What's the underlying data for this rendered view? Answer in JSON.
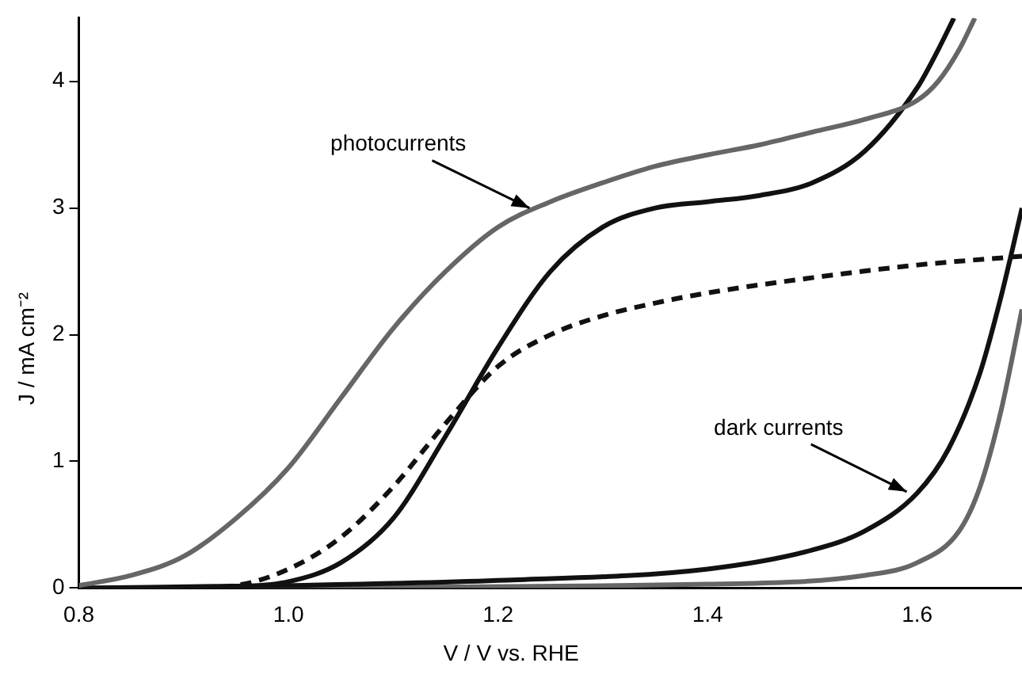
{
  "chart_data": {
    "type": "line",
    "xlabel": "V / V vs. RHE",
    "ylabel": "J / mA cm⁻²",
    "xlim": [
      0.8,
      1.7
    ],
    "ylim": [
      0,
      4.5
    ],
    "xticks": [
      {
        "value": 0.8,
        "label": "0.8"
      },
      {
        "value": 1.0,
        "label": "1.0"
      },
      {
        "value": 1.2,
        "label": "1.2"
      },
      {
        "value": 1.4,
        "label": "1.4"
      },
      {
        "value": 1.6,
        "label": "1.6"
      }
    ],
    "yticks": [
      0,
      1,
      2,
      3,
      4
    ],
    "grid": false,
    "legend": false,
    "marker": "none",
    "series": [
      {
        "color": "#666666",
        "line_style": "solid",
        "x": [
          0.8,
          0.85,
          0.9,
          0.95,
          1.0,
          1.05,
          1.1,
          1.15,
          1.2,
          1.25,
          1.3,
          1.35,
          1.4,
          1.45,
          1.5,
          1.55,
          1.6,
          1.62,
          1.64,
          1.655
        ],
        "values": [
          0.02,
          0.1,
          0.25,
          0.55,
          0.95,
          1.5,
          2.05,
          2.5,
          2.85,
          3.05,
          3.2,
          3.33,
          3.42,
          3.5,
          3.6,
          3.7,
          3.85,
          4.0,
          4.25,
          4.5
        ]
      },
      {
        "color": "#111111",
        "line_style": "solid",
        "x": [
          0.9,
          0.95,
          1.0,
          1.05,
          1.1,
          1.15,
          1.2,
          1.25,
          1.3,
          1.35,
          1.4,
          1.45,
          1.5,
          1.55,
          1.6,
          1.62,
          1.635
        ],
        "values": [
          0,
          0.01,
          0.05,
          0.2,
          0.55,
          1.2,
          1.9,
          2.5,
          2.85,
          3.0,
          3.05,
          3.1,
          3.2,
          3.45,
          3.95,
          4.25,
          4.5
        ]
      },
      {
        "color": "#111111",
        "line_style": "dashed",
        "x": [
          0.9,
          0.95,
          1.0,
          1.05,
          1.1,
          1.15,
          1.2,
          1.25,
          1.3,
          1.35,
          1.4,
          1.5,
          1.6,
          1.7
        ],
        "values": [
          0,
          0.02,
          0.15,
          0.4,
          0.8,
          1.3,
          1.75,
          2.0,
          2.15,
          2.25,
          2.33,
          2.45,
          2.55,
          2.62
        ]
      },
      {
        "color": "#111111",
        "line_style": "solid",
        "x": [
          0.8,
          1.0,
          1.2,
          1.4,
          1.5,
          1.55,
          1.6,
          1.63,
          1.66,
          1.68,
          1.7
        ],
        "values": [
          0,
          0.02,
          0.06,
          0.15,
          0.3,
          0.45,
          0.75,
          1.1,
          1.7,
          2.3,
          3.0
        ]
      },
      {
        "color": "#666666",
        "line_style": "solid",
        "x": [
          0.8,
          1.4,
          1.55,
          1.6,
          1.64,
          1.66,
          1.68,
          1.7
        ],
        "values": [
          0,
          0.03,
          0.1,
          0.2,
          0.45,
          0.8,
          1.4,
          2.2
        ]
      }
    ],
    "annotations": [
      {
        "text": "photocurrents",
        "x": 1.23,
        "y": 3.0
      },
      {
        "text": "dark currents",
        "x": 1.59,
        "y": 0.76
      }
    ]
  }
}
